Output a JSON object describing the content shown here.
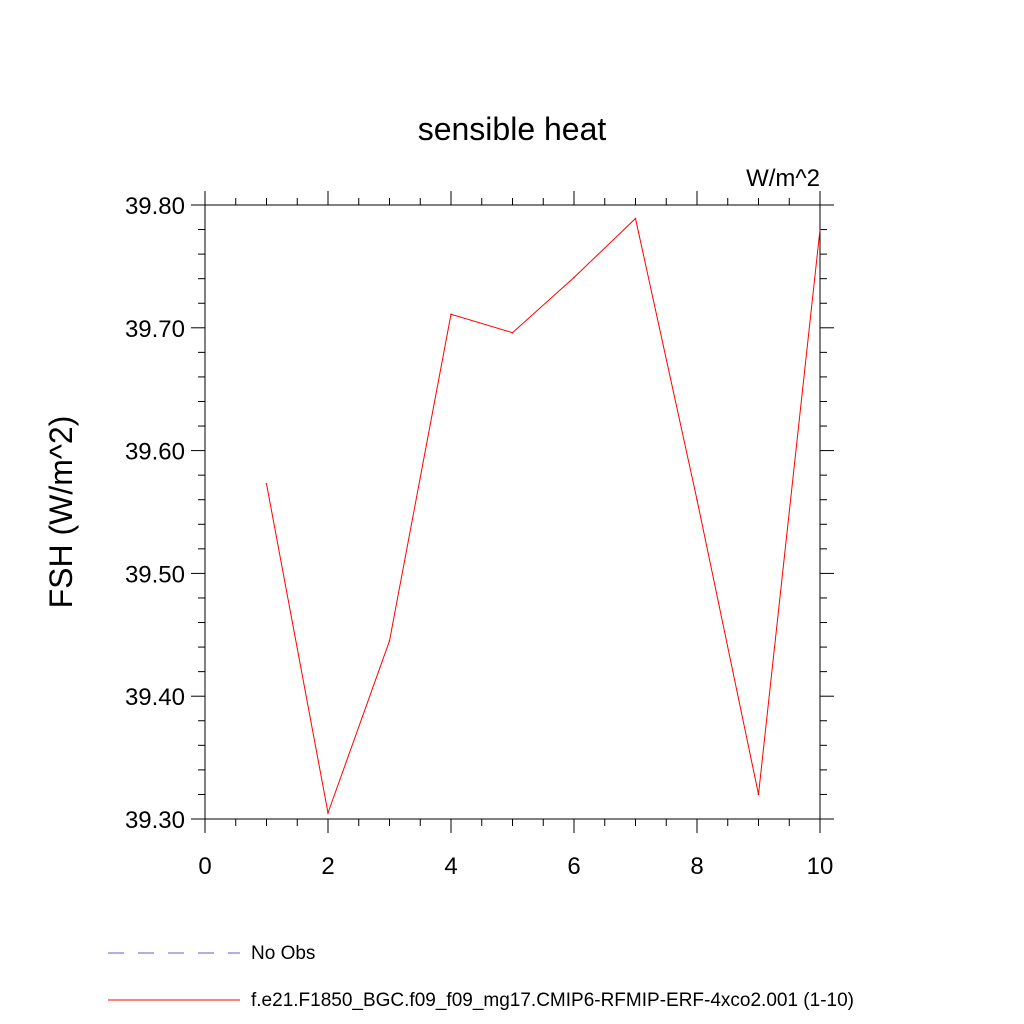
{
  "chart_data": {
    "type": "line",
    "title": "sensible heat",
    "units_label": "W/m^2",
    "ylabel": "FSH  (W/m^2)",
    "xlabel": "",
    "xlim": [
      0,
      10
    ],
    "ylim": [
      39.3,
      39.8
    ],
    "x_ticks": [
      0,
      2,
      4,
      6,
      8,
      10
    ],
    "y_ticks": [
      39.3,
      39.4,
      39.5,
      39.6,
      39.7,
      39.8
    ],
    "x_tick_labels": [
      "0",
      "2",
      "4",
      "6",
      "8",
      "10"
    ],
    "y_tick_labels": [
      "39.30",
      "39.40",
      "39.50",
      "39.60",
      "39.70",
      "39.80"
    ],
    "grid": false,
    "series": [
      {
        "name": "f.e21.F1850_BGC.f09_f09_mg17.CMIP6-RFMIP-ERF-4xco2.001 (1-10)",
        "color": "#ff0000",
        "x": [
          1,
          2,
          3,
          4,
          5,
          6,
          7,
          8,
          9,
          10
        ],
        "y": [
          39.573,
          39.305,
          39.445,
          39.711,
          39.696,
          39.741,
          39.789,
          39.56,
          39.32,
          39.78
        ]
      }
    ],
    "legend": [
      {
        "label": "No Obs",
        "color": "#6a5acd",
        "style": "dashed"
      },
      {
        "label": "f.e21.F1850_BGC.f09_f09_mg17.CMIP6-RFMIP-ERF-4xco2.001 (1-10)",
        "color": "#ff0000",
        "style": "solid"
      }
    ]
  }
}
